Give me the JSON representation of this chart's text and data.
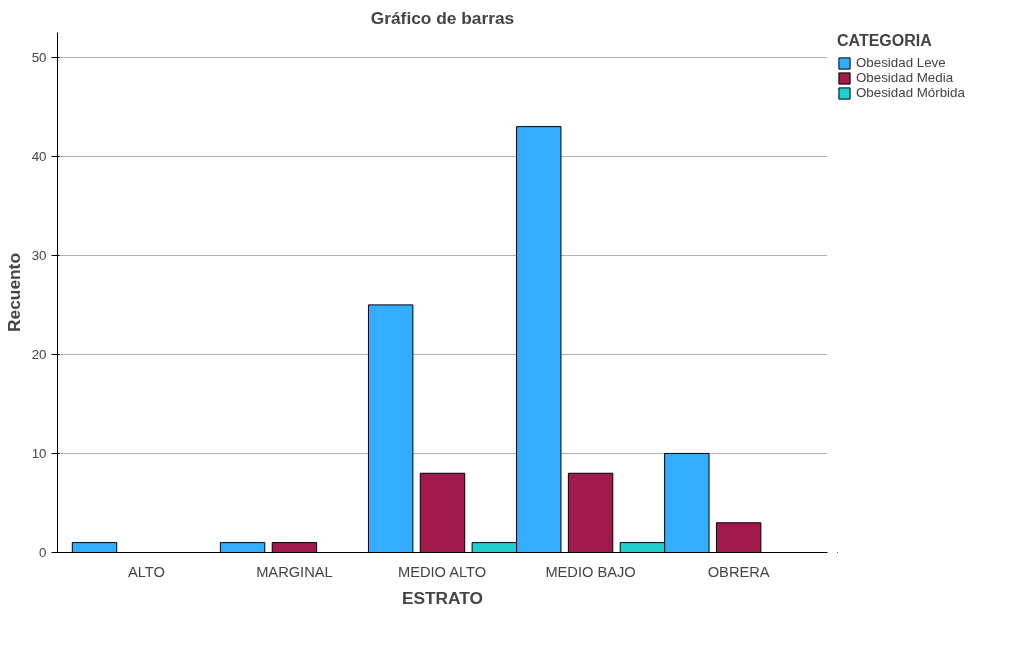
{
  "chart_data": {
    "type": "bar",
    "title": "Gráfico de barras",
    "xlabel": "ESTRATO",
    "ylabel": "Recuento",
    "legend_title": "CATEGORIA",
    "categories": [
      "ALTO",
      "MARGINAL",
      "MEDIO ALTO",
      "MEDIO BAJO",
      "OBRERA"
    ],
    "series": [
      {
        "name": "Obesidad Leve",
        "color": "#33adff",
        "values": [
          1,
          1,
          25,
          43,
          10
        ]
      },
      {
        "name": "Obesidad Media",
        "color": "#a01a4c",
        "values": [
          null,
          1,
          8,
          8,
          3
        ]
      },
      {
        "name": "Obesidad Mórbida",
        "color": "#1fcfcf",
        "values": [
          null,
          null,
          1,
          1,
          null
        ]
      }
    ],
    "ylim": [
      0,
      52.5
    ],
    "yticks": [
      0,
      10,
      20,
      30,
      40,
      50
    ],
    "grid": "y",
    "legend": "top right"
  }
}
